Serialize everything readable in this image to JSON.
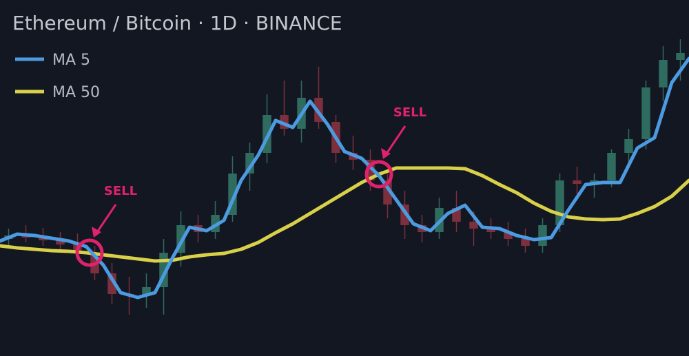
{
  "chart_data": {
    "type": "candlestick-ma",
    "title": "Ethereum / Bitcoin · 1D · BINANCE",
    "xlim": [
      0,
      40
    ],
    "ylim": [
      0,
      517
    ],
    "x": [
      0,
      1,
      2,
      3,
      4,
      5,
      6,
      7,
      8,
      9,
      10,
      11,
      12,
      13,
      14,
      15,
      16,
      17,
      18,
      19,
      20,
      21,
      22,
      23,
      24,
      25,
      26,
      27,
      28,
      29,
      30,
      31,
      32,
      33,
      34,
      35,
      36,
      37,
      38,
      39,
      40
    ],
    "series": [
      {
        "name": "MA 5",
        "color": "#4c9be0",
        "values": [
          167,
          177,
          175,
          171,
          167,
          159,
          132,
          92,
          85,
          92,
          142,
          187,
          182,
          197,
          255,
          292,
          342,
          332,
          370,
          337,
          297,
          287,
          262,
          227,
          192,
          182,
          207,
          219,
          187,
          185,
          175,
          169,
          172,
          212,
          249,
          252,
          252,
          302,
          317,
          397,
          432
        ]
      },
      {
        "name": "MA 50",
        "color": "#d9d04a",
        "values": [
          160,
          157,
          155,
          153,
          152,
          150,
          147,
          144,
          141,
          138,
          139,
          144,
          147,
          149,
          155,
          165,
          179,
          192,
          207,
          222,
          237,
          252,
          264,
          273,
          273,
          273,
          273,
          272,
          262,
          249,
          237,
          222,
          210,
          202,
          199,
          198,
          199,
          207,
          217,
          232,
          255
        ]
      }
    ],
    "candles": {
      "up_color": "#2f6b5e",
      "down_color": "#7c2f3d",
      "x": [
        0.5,
        1.5,
        2.5,
        3.5,
        4.5,
        5.5,
        6.5,
        7.5,
        8.5,
        9.5,
        10.5,
        11.5,
        12.5,
        13.5,
        14.5,
        15.5,
        16.5,
        17.5,
        18.5,
        19.5,
        20.5,
        21.5,
        22.5,
        23.5,
        24.5,
        25.5,
        26.5,
        27.5,
        28.5,
        29.5,
        30.5,
        31.5,
        32.5,
        33.5,
        34.5,
        35.5,
        36.5,
        37.5,
        38.5,
        39.5
      ],
      "open": [
        170,
        175,
        172,
        168,
        162,
        150,
        120,
        90,
        88,
        100,
        150,
        190,
        180,
        205,
        265,
        295,
        350,
        330,
        375,
        340,
        295,
        285,
        255,
        220,
        190,
        180,
        215,
        195,
        185,
        180,
        170,
        160,
        190,
        255,
        250,
        255,
        295,
        315,
        390,
        430
      ],
      "high": [
        185,
        190,
        186,
        180,
        178,
        160,
        135,
        115,
        120,
        170,
        210,
        205,
        225,
        290,
        310,
        380,
        400,
        400,
        420,
        350,
        320,
        300,
        265,
        240,
        205,
        230,
        240,
        210,
        200,
        195,
        185,
        200,
        265,
        275,
        265,
        300,
        330,
        400,
        450,
        460
      ],
      "low": [
        158,
        165,
        160,
        150,
        140,
        110,
        75,
        60,
        70,
        60,
        130,
        165,
        170,
        195,
        240,
        280,
        320,
        310,
        330,
        280,
        270,
        240,
        200,
        170,
        165,
        170,
        180,
        160,
        170,
        160,
        150,
        150,
        180,
        235,
        230,
        245,
        280,
        300,
        370,
        400
      ],
      "close": [
        175,
        172,
        168,
        162,
        150,
        120,
        90,
        88,
        100,
        150,
        190,
        180,
        205,
        265,
        295,
        350,
        330,
        375,
        340,
        295,
        285,
        255,
        220,
        190,
        180,
        215,
        195,
        185,
        180,
        170,
        160,
        190,
        255,
        250,
        255,
        295,
        315,
        390,
        430,
        440
      ]
    },
    "annotations": [
      {
        "text": "SELL",
        "x": 5.2,
        "y": 150
      },
      {
        "text": "SELL",
        "x": 22,
        "y": 264
      }
    ]
  }
}
